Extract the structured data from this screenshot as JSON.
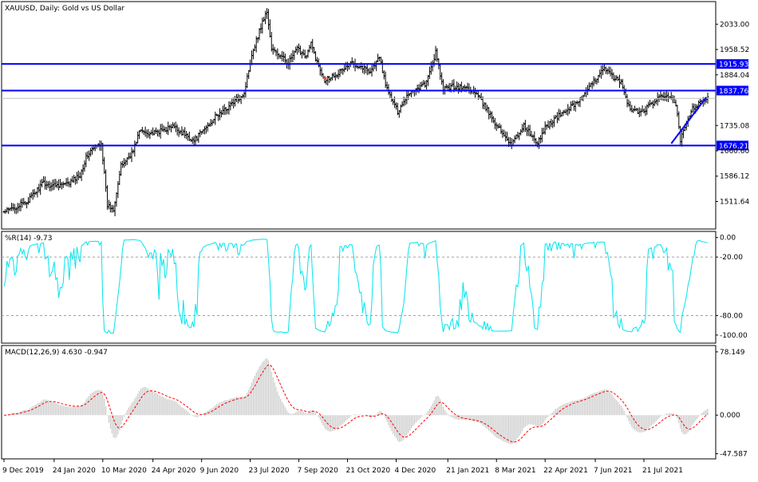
{
  "chart_data": [
    {
      "panel": "price",
      "type": "ohlc",
      "title": "XAUUSD, Daily:  Gold vs US Dollar",
      "ylim": [
        1440,
        2090
      ],
      "yticks": [
        2033.0,
        1958.52,
        1884.04,
        1735.08,
        1660.6,
        1586.12,
        1511.64
      ],
      "ytick_labels": [
        "2033.00",
        "1958.52",
        "1884.04",
        "1735.08",
        "1660.60",
        "1586.12",
        "1511.64"
      ],
      "current_price": 1815.0,
      "horizontal_lines": [
        {
          "value": 1915.93,
          "label": "1915.93",
          "color": "#0000ff"
        },
        {
          "value": 1837.76,
          "label": "1837.76",
          "color": "#0000ff"
        },
        {
          "value": 1676.21,
          "label": "1676.21",
          "color": "#0000ff"
        }
      ],
      "trendline": {
        "start": {
          "date_index": 439,
          "value": 1682
        },
        "end": {
          "date_index": 462,
          "value": 1818
        },
        "color": "#0000ff"
      },
      "close_anchors": [
        [
          0,
          1480
        ],
        [
          15,
          1510
        ],
        [
          26,
          1567
        ],
        [
          29,
          1560
        ],
        [
          42,
          1562
        ],
        [
          50,
          1590
        ],
        [
          54,
          1640
        ],
        [
          57,
          1660
        ],
        [
          64,
          1685
        ],
        [
          68,
          1500
        ],
        [
          72,
          1490
        ],
        [
          77,
          1615
        ],
        [
          85,
          1660
        ],
        [
          89,
          1718
        ],
        [
          99,
          1712
        ],
        [
          111,
          1732
        ],
        [
          117,
          1715
        ],
        [
          125,
          1690
        ],
        [
          131,
          1720
        ],
        [
          139,
          1760
        ],
        [
          145,
          1780
        ],
        [
          150,
          1800
        ],
        [
          158,
          1830
        ],
        [
          163,
          1945
        ],
        [
          170,
          2040
        ],
        [
          173,
          2070
        ],
        [
          176,
          1960
        ],
        [
          187,
          1920
        ],
        [
          193,
          1960
        ],
        [
          199,
          1940
        ],
        [
          202,
          1975
        ],
        [
          206,
          1920
        ],
        [
          211,
          1870
        ],
        [
          220,
          1890
        ],
        [
          229,
          1920
        ],
        [
          234,
          1910
        ],
        [
          241,
          1895
        ],
        [
          247,
          1935
        ],
        [
          252,
          1840
        ],
        [
          259,
          1776
        ],
        [
          266,
          1830
        ],
        [
          278,
          1860
        ],
        [
          284,
          1950
        ],
        [
          289,
          1840
        ],
        [
          294,
          1850
        ],
        [
          305,
          1845
        ],
        [
          311,
          1825
        ],
        [
          318,
          1780
        ],
        [
          325,
          1730
        ],
        [
          334,
          1680
        ],
        [
          342,
          1735
        ],
        [
          351,
          1680
        ],
        [
          356,
          1730
        ],
        [
          364,
          1760
        ],
        [
          373,
          1790
        ],
        [
          381,
          1820
        ],
        [
          389,
          1870
        ],
        [
          394,
          1905
        ],
        [
          400,
          1880
        ],
        [
          406,
          1860
        ],
        [
          412,
          1780
        ],
        [
          420,
          1775
        ],
        [
          429,
          1810
        ],
        [
          436,
          1825
        ],
        [
          442,
          1800
        ],
        [
          445,
          1690
        ],
        [
          452,
          1780
        ],
        [
          458,
          1800
        ],
        [
          463,
          1815
        ]
      ]
    },
    {
      "panel": "williams_r",
      "type": "line",
      "title": "%R(14) -9.73",
      "ylim": [
        -105,
        3
      ],
      "yticks": [
        0.0,
        -20.0,
        -80.0,
        -100.0
      ],
      "ytick_labels": [
        "0.00",
        "-20.00",
        "-80.00",
        "-100.00"
      ],
      "levels": [
        -20,
        -80
      ],
      "color": "#00e5ee",
      "last_value": -9.73
    },
    {
      "panel": "macd",
      "type": "histogram+line",
      "title": "MACD(12,26,9) 4.630 -0.947",
      "ylim": [
        -50,
        82
      ],
      "yticks": [
        78.149,
        0.0,
        -47.587
      ],
      "ytick_labels": [
        "78.149",
        "0.000",
        "-47.587"
      ],
      "histogram_color": "#c0c0c0",
      "signal_color": "#ff0000",
      "macd_value": 4.63,
      "signal_value": -0.947
    }
  ],
  "x_axis": {
    "date_count": 470,
    "labels": [
      {
        "text": "9 Dec 2019",
        "date_index": 0
      },
      {
        "text": "24 Jan 2020",
        "date_index": 33
      },
      {
        "text": "10 Mar 2020",
        "date_index": 65
      },
      {
        "text": "24 Apr 2020",
        "date_index": 98
      },
      {
        "text": "9 Jun 2020",
        "date_index": 130
      },
      {
        "text": "23 Jul 2020",
        "date_index": 162
      },
      {
        "text": "7 Sep 2020",
        "date_index": 194
      },
      {
        "text": "21 Oct 2020",
        "date_index": 226
      },
      {
        "text": "4 Dec 2020",
        "date_index": 258
      },
      {
        "text": "21 Jan 2021",
        "date_index": 292
      },
      {
        "text": "8 Mar 2021",
        "date_index": 324
      },
      {
        "text": "22 Apr 2021",
        "date_index": 356
      },
      {
        "text": "7 Jun 2021",
        "date_index": 389
      },
      {
        "text": "21 Jul 2021",
        "date_index": 421
      }
    ]
  },
  "colors": {
    "candles": "#000000",
    "levels": "#0000ff",
    "grid": "#a0a0a0",
    "price_line": "#c0c0c0"
  }
}
